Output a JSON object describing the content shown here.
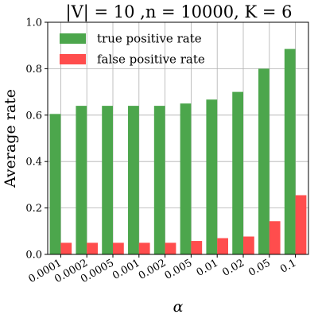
{
  "chart_data": {
    "type": "bar",
    "title": "|V| = 10 ,n = 10000, K = 6",
    "xlabel": "α",
    "ylabel": "Average rate",
    "categories": [
      "0.0001",
      "0.0002",
      "0.0005",
      "0.001",
      "0.002",
      "0.005",
      "0.01",
      "0.02",
      "0.05",
      "0.1"
    ],
    "series": [
      {
        "name": "true positive rate",
        "color": "#4ca64c",
        "values": [
          0.605,
          0.64,
          0.64,
          0.64,
          0.64,
          0.65,
          0.667,
          0.7,
          0.8,
          0.885
        ]
      },
      {
        "name": "false positive rate",
        "color": "#ff4d4d",
        "values": [
          0.05,
          0.05,
          0.05,
          0.05,
          0.05,
          0.058,
          0.07,
          0.077,
          0.143,
          0.255
        ]
      }
    ],
    "ylim": [
      0,
      1.0
    ],
    "yticks": [
      "0.0",
      "0.2",
      "0.4",
      "0.6",
      "0.8",
      "1.0"
    ],
    "ytick_values": [
      0,
      0.2,
      0.4,
      0.6,
      0.8,
      1.0
    ],
    "grid": true,
    "legend_position": "top-left"
  }
}
